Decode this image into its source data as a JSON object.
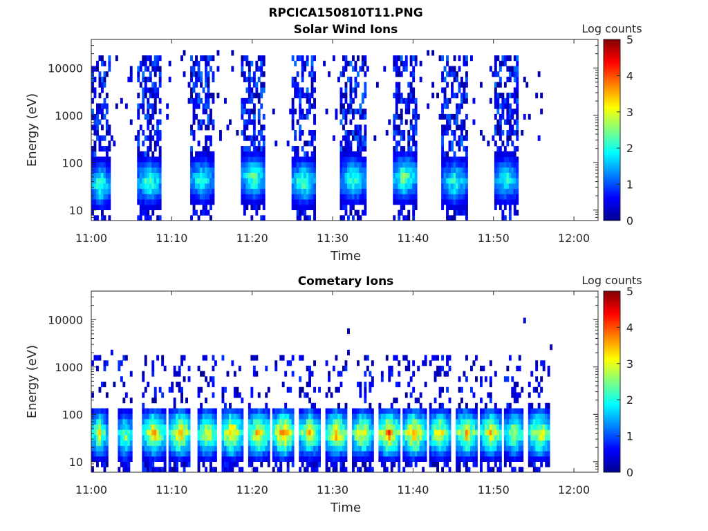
{
  "figure_title": "RPCICA150810T11.PNG",
  "colormap": [
    "#00008f",
    "#0000ff",
    "#0080ff",
    "#00ffff",
    "#80ff80",
    "#ffff00",
    "#ff8000",
    "#ff0000",
    "#800000"
  ],
  "chart_data": [
    {
      "type": "heatmap",
      "title": "Solar Wind Ions",
      "xlabel": "Time",
      "ylabel": "Energy (eV)",
      "x_ticks": [
        "11:00",
        "11:10",
        "11:20",
        "11:30",
        "11:40",
        "11:50",
        "12:00"
      ],
      "xlim_minutes": [
        0,
        63
      ],
      "y_ticks": [
        "10",
        "100",
        "1000",
        "10000"
      ],
      "ylim_eV": [
        6,
        40000
      ],
      "yscale": "log",
      "colorbar_label": "Log counts",
      "colorbar_ticks": [
        "0",
        "1",
        "2",
        "3",
        "4",
        "5"
      ],
      "clim": [
        0,
        5
      ],
      "data_end_minute": 57,
      "bursts": [
        {
          "start": 0.0,
          "end": 2.3,
          "peak_energy_eV": 35,
          "peak_log_counts": 2.6
        },
        {
          "start": 5.7,
          "end": 8.8,
          "peak_energy_eV": 40,
          "peak_log_counts": 2.6
        },
        {
          "start": 12.2,
          "end": 15.3,
          "peak_energy_eV": 45,
          "peak_log_counts": 2.4
        },
        {
          "start": 18.6,
          "end": 21.7,
          "peak_energy_eV": 50,
          "peak_log_counts": 2.7
        },
        {
          "start": 24.8,
          "end": 28.0,
          "peak_energy_eV": 40,
          "peak_log_counts": 2.6
        },
        {
          "start": 31.0,
          "end": 34.2,
          "peak_energy_eV": 45,
          "peak_log_counts": 2.5
        },
        {
          "start": 37.4,
          "end": 40.6,
          "peak_energy_eV": 50,
          "peak_log_counts": 2.8
        },
        {
          "start": 43.6,
          "end": 46.8,
          "peak_energy_eV": 40,
          "peak_log_counts": 2.4
        },
        {
          "start": 50.0,
          "end": 53.2,
          "peak_energy_eV": 45,
          "peak_log_counts": 2.3
        }
      ]
    },
    {
      "type": "heatmap",
      "title": "Cometary Ions",
      "xlabel": "Time",
      "ylabel": "Energy (eV)",
      "x_ticks": [
        "11:00",
        "11:10",
        "11:20",
        "11:30",
        "11:40",
        "11:50",
        "12:00"
      ],
      "xlim_minutes": [
        0,
        63
      ],
      "y_ticks": [
        "10",
        "100",
        "1000",
        "10000"
      ],
      "ylim_eV": [
        6,
        40000
      ],
      "yscale": "log",
      "colorbar_label": "Log counts",
      "colorbar_ticks": [
        "0",
        "1",
        "2",
        "3",
        "4",
        "5"
      ],
      "clim": [
        0,
        5
      ],
      "data_end_minute": 57,
      "bursts": [
        {
          "start": 0.0,
          "end": 2.0,
          "peak_energy_eV": 40,
          "peak_log_counts": 3.3
        },
        {
          "start": 3.2,
          "end": 5.2,
          "peak_energy_eV": 35,
          "peak_log_counts": 3.0
        },
        {
          "start": 6.4,
          "end": 9.2,
          "peak_energy_eV": 40,
          "peak_log_counts": 3.8
        },
        {
          "start": 9.6,
          "end": 12.4,
          "peak_energy_eV": 40,
          "peak_log_counts": 4.0
        },
        {
          "start": 13.2,
          "end": 15.6,
          "peak_energy_eV": 40,
          "peak_log_counts": 3.6
        },
        {
          "start": 16.2,
          "end": 18.8,
          "peak_energy_eV": 40,
          "peak_log_counts": 4.0
        },
        {
          "start": 19.4,
          "end": 22.2,
          "peak_energy_eV": 40,
          "peak_log_counts": 3.8
        },
        {
          "start": 22.6,
          "end": 25.2,
          "peak_energy_eV": 40,
          "peak_log_counts": 4.3
        },
        {
          "start": 25.8,
          "end": 28.4,
          "peak_energy_eV": 40,
          "peak_log_counts": 3.6
        },
        {
          "start": 29.2,
          "end": 31.8,
          "peak_energy_eV": 40,
          "peak_log_counts": 3.9
        },
        {
          "start": 32.4,
          "end": 35.0,
          "peak_energy_eV": 40,
          "peak_log_counts": 3.7
        },
        {
          "start": 35.6,
          "end": 38.4,
          "peak_energy_eV": 40,
          "peak_log_counts": 4.2
        },
        {
          "start": 38.8,
          "end": 41.6,
          "peak_energy_eV": 40,
          "peak_log_counts": 4.1
        },
        {
          "start": 42.0,
          "end": 44.6,
          "peak_energy_eV": 40,
          "peak_log_counts": 3.6
        },
        {
          "start": 45.2,
          "end": 48.0,
          "peak_energy_eV": 40,
          "peak_log_counts": 3.8
        },
        {
          "start": 48.4,
          "end": 51.0,
          "peak_energy_eV": 40,
          "peak_log_counts": 3.7
        },
        {
          "start": 51.4,
          "end": 53.8,
          "peak_energy_eV": 40,
          "peak_log_counts": 3.3
        },
        {
          "start": 54.4,
          "end": 57.0,
          "peak_energy_eV": 40,
          "peak_log_counts": 3.7
        }
      ]
    }
  ]
}
